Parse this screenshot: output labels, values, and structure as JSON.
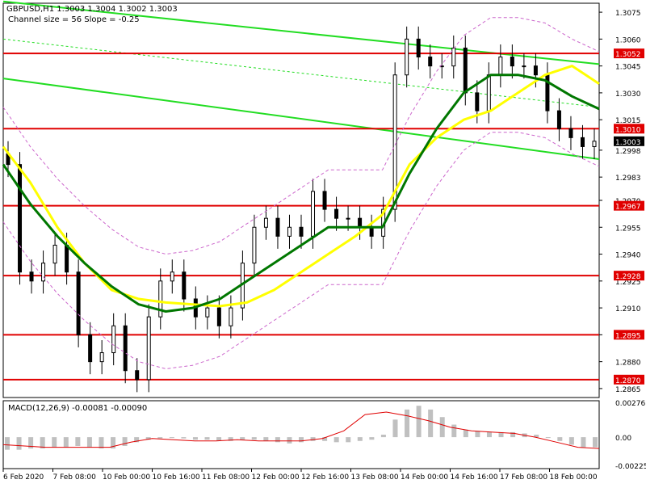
{
  "header": {
    "title": "GBPUSD,H1  1.3003 1.3004 1.3002 1.3003",
    "subtitle": "Channel size = 56 Slope = -0.25"
  },
  "colors": {
    "background": "#ffffff",
    "candle": "#000000",
    "level_line": "#e00000",
    "channel": "#22dd22",
    "ma_fast": "#ffff00",
    "ma_slow": "#007700",
    "bollinger": "#cc66cc",
    "macd_hist": "#c0c0c0",
    "macd_signal": "#e00000",
    "price_label_bg": "#e00000",
    "current_label_bg": "#000000"
  },
  "chart_data": [
    {
      "type": "candlestick",
      "symbol": "GBPUSD",
      "timeframe": "H1",
      "ylim": [
        1.286,
        1.308
      ],
      "price_ticks": [
        1.3075,
        1.306,
        1.3045,
        1.303,
        1.3015,
        1.2998,
        1.2983,
        1.297,
        1.2955,
        1.294,
        1.2925,
        1.291,
        1.2895,
        1.288,
        1.2865
      ],
      "x_ticks": [
        "6 Feb 2020",
        "7 Feb 08:00",
        "10 Feb 00:00",
        "10 Feb 16:00",
        "11 Feb 08:00",
        "12 Feb 00:00",
        "12 Feb 16:00",
        "13 Feb 08:00",
        "14 Feb 00:00",
        "14 Feb 16:00",
        "17 Feb 08:00",
        "18 Feb 00:00"
      ],
      "levels": [
        1.3052,
        1.301,
        1.2967,
        1.2928,
        1.2895,
        1.287
      ],
      "current_price": 1.3003,
      "close_series": [
        1.299,
        1.293,
        1.2925,
        1.2935,
        1.2945,
        1.293,
        1.2895,
        1.288,
        1.2885,
        1.29,
        1.2875,
        1.287,
        1.2905,
        1.2925,
        1.293,
        1.2915,
        1.2905,
        1.291,
        1.29,
        1.291,
        1.2935,
        1.2955,
        1.296,
        1.295,
        1.2955,
        1.295,
        1.2975,
        1.2965,
        1.296,
        1.296,
        1.2955,
        1.295,
        1.2965,
        1.304,
        1.306,
        1.305,
        1.3045,
        1.3045,
        1.3055,
        1.303,
        1.302,
        1.304,
        1.305,
        1.3045,
        1.3045,
        1.304,
        1.302,
        1.301,
        1.3005,
        1.3,
        1.3003
      ],
      "ma_fast": [
        1.3,
        1.298,
        1.2955,
        1.2935,
        1.292,
        1.2915,
        1.2913,
        1.2912,
        1.2911,
        1.2913,
        1.292,
        1.293,
        1.294,
        1.295,
        1.2962,
        1.299,
        1.3005,
        1.3015,
        1.302,
        1.303,
        1.304,
        1.3045,
        1.3035
      ],
      "ma_slow": [
        1.299,
        1.2968,
        1.295,
        1.2935,
        1.2922,
        1.2912,
        1.2908,
        1.291,
        1.2915,
        1.2925,
        1.2935,
        1.2945,
        1.2955,
        1.2955,
        1.2955,
        1.2985,
        1.301,
        1.303,
        1.304,
        1.304,
        1.3037,
        1.3028,
        1.3021
      ],
      "channel": {
        "upper": [
          1.3081,
          1.3046
        ],
        "middle": [
          1.306,
          1.3022
        ],
        "lower": [
          1.3038,
          1.2993
        ]
      }
    },
    {
      "type": "bar",
      "title": "MACD(12,26,9) -0.00081 -0.00090",
      "ylim": [
        -0.0025,
        0.0029
      ],
      "y_ticks": [
        0.00276,
        0.0,
        -0.00225
      ],
      "histogram": [
        -0.001,
        -0.001,
        -0.0009,
        -0.0009,
        -0.0008,
        -0.0008,
        -0.0007,
        -0.0008,
        -0.0009,
        -0.0009,
        -0.0007,
        -0.0004,
        -0.0002,
        -0.0001,
        0.0,
        -0.0001,
        -0.0002,
        -0.0002,
        -0.0003,
        -0.0003,
        -0.0002,
        -0.0002,
        -0.0003,
        -0.0004,
        -0.0005,
        -0.0004,
        -0.0003,
        -0.0003,
        -0.0004,
        -0.0004,
        -0.0003,
        -0.0002,
        0.0002,
        0.0014,
        0.0022,
        0.0025,
        0.0022,
        0.0016,
        0.001,
        0.0006,
        0.0005,
        0.0004,
        0.0004,
        0.0004,
        0.0003,
        0.0002,
        0.0,
        -0.0003,
        -0.0006,
        -0.0008,
        -0.0008
      ],
      "signal": [
        -0.0006,
        -0.0007,
        -0.0008,
        -0.0008,
        -0.0008,
        -0.0008,
        -0.0004,
        -0.0001,
        -0.0002,
        -0.0003,
        -0.0003,
        -0.0002,
        -0.0003,
        -0.0003,
        -0.0003,
        -0.0001,
        0.0005,
        0.0018,
        0.002,
        0.0017,
        0.0013,
        0.0008,
        0.0005,
        0.0004,
        0.0003,
        0.0,
        -0.0004,
        -0.0008,
        -0.0009
      ]
    }
  ]
}
